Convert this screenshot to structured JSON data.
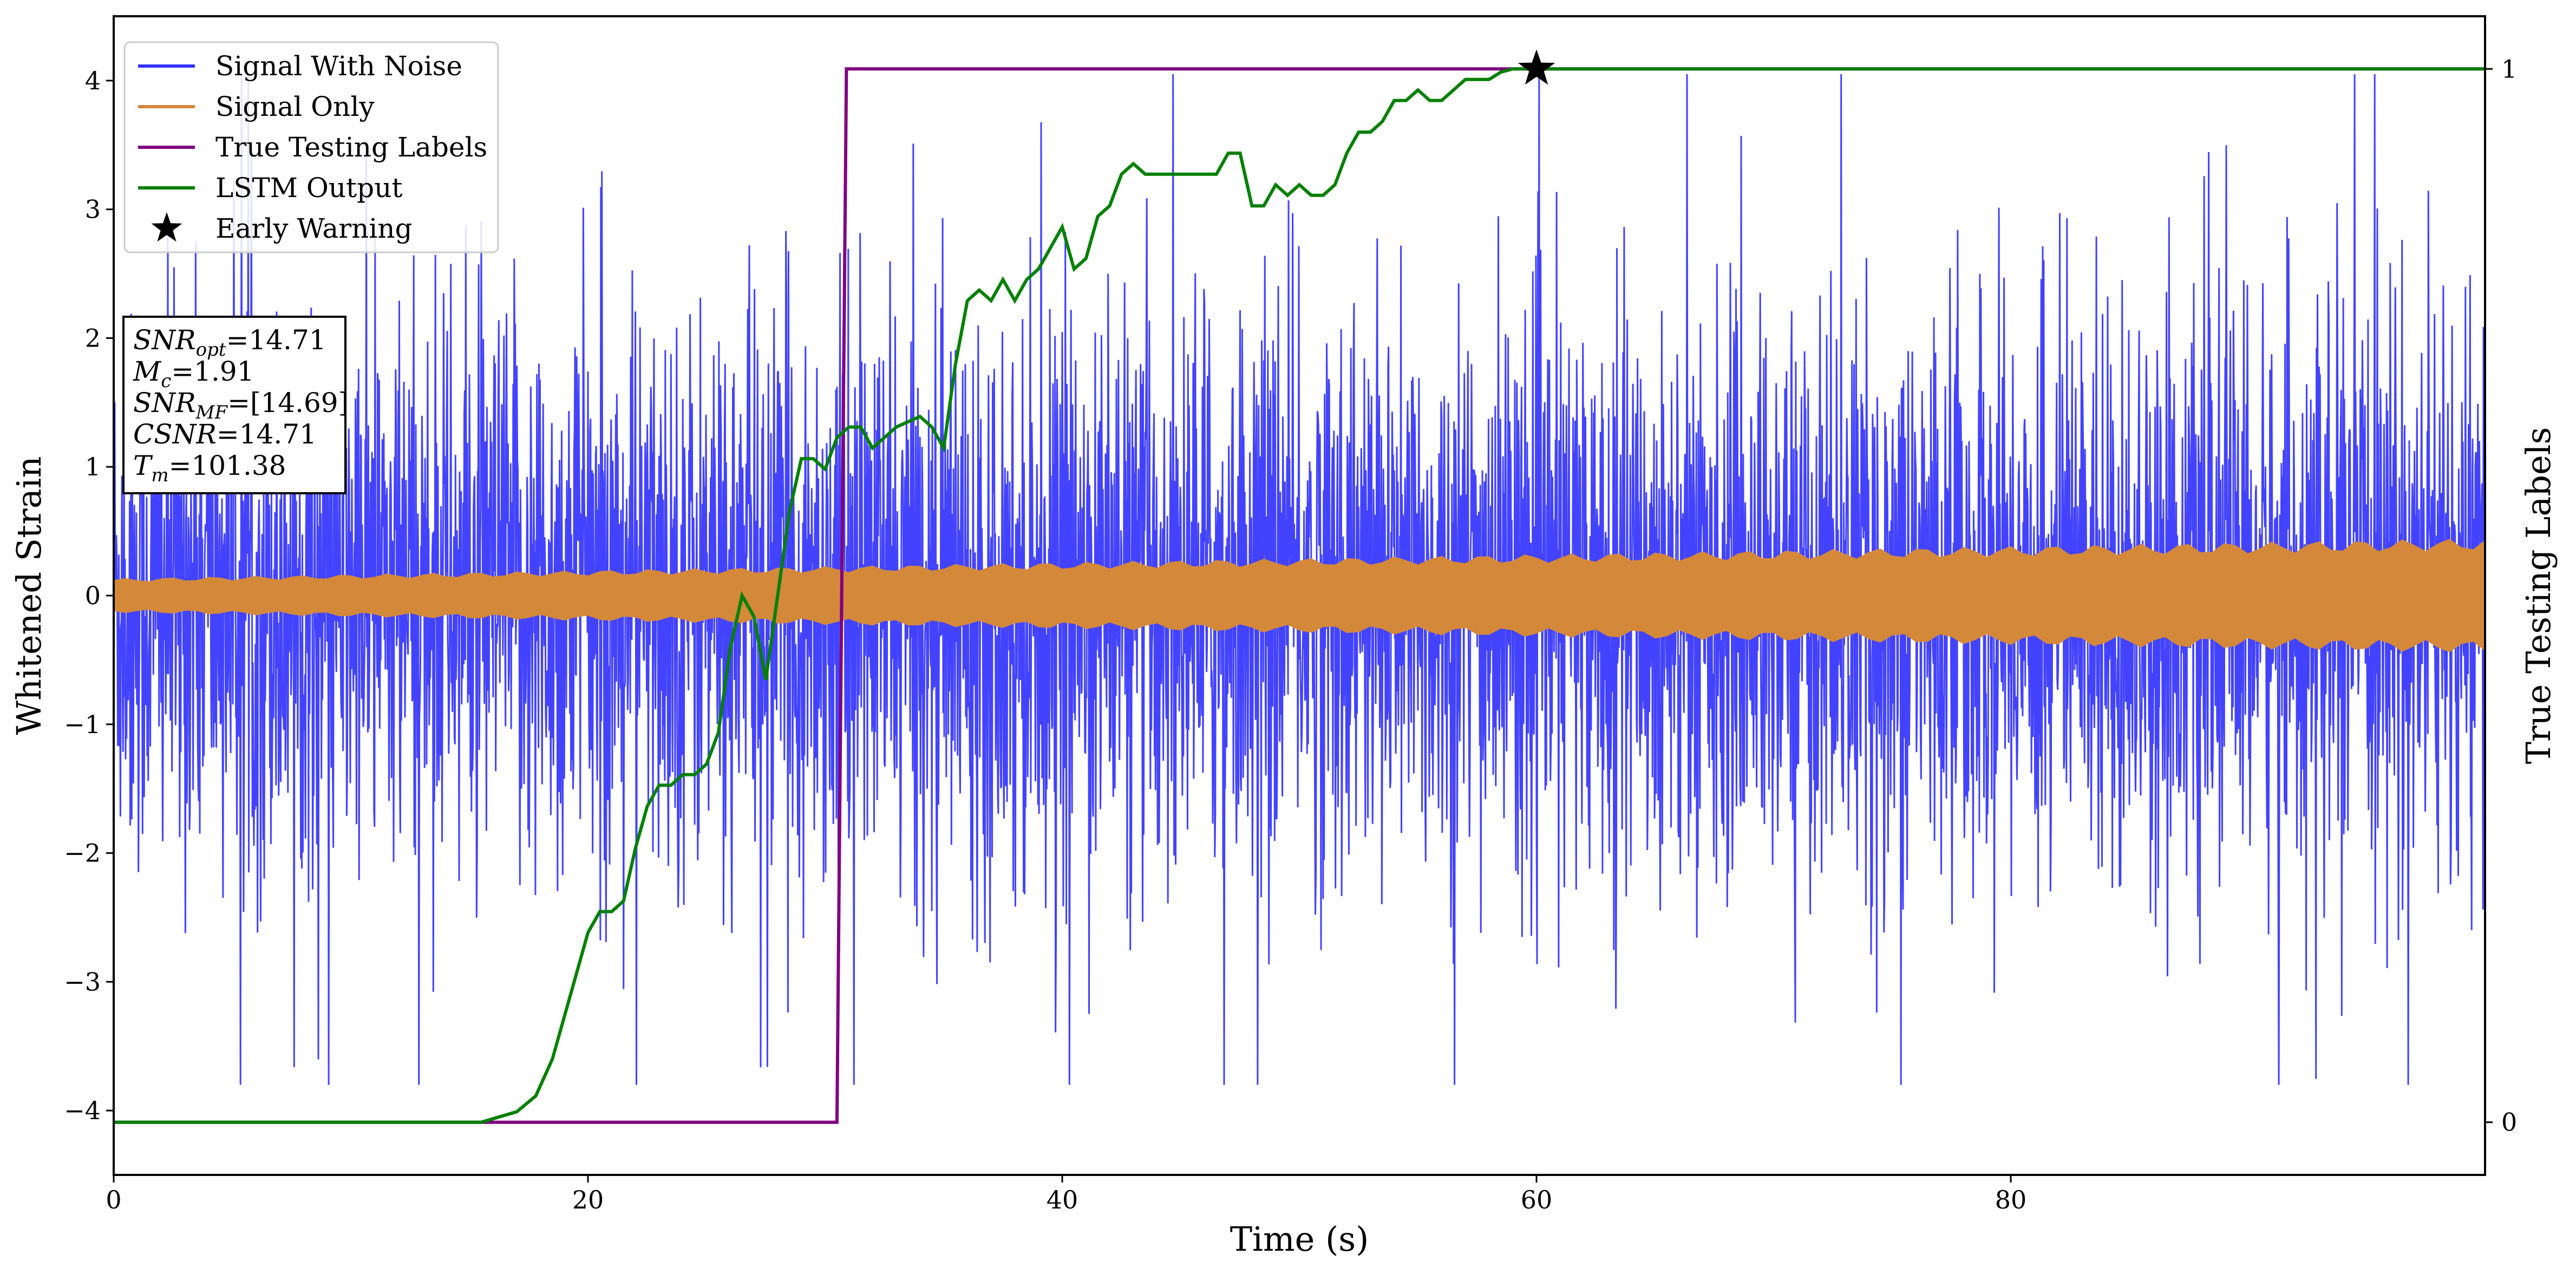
{
  "chart_data": {
    "type": "line",
    "xlabel": "Time (s)",
    "ylabel": "Whitened Strain",
    "y2label": "True Testing Labels",
    "xlim": [
      0,
      100
    ],
    "ylim": [
      -4.5,
      4.5
    ],
    "y2lim": [
      -0.05,
      1.05
    ],
    "xticks": [
      0,
      20,
      40,
      60,
      80
    ],
    "yticks": [
      -4,
      -3,
      -2,
      -1,
      0,
      1,
      2,
      3,
      4
    ],
    "y2ticks": [
      0,
      1
    ],
    "legend_position": "top-left",
    "grid": false,
    "series": [
      {
        "name": "Signal With Noise",
        "color": "#3333ff",
        "kind": "noise",
        "description_values": {
          "typical_amplitude": 1.2,
          "peak_min": -3.8,
          "peak_max": 4.05
        }
      },
      {
        "name": "Signal Only",
        "color": "#d4883a",
        "kind": "chirp-envelope",
        "envelope": {
          "x": [
            0,
            100
          ],
          "amplitude": [
            0.12,
            0.4
          ]
        }
      },
      {
        "name": "True Testing Labels",
        "color": "#800080",
        "axis": "right",
        "x": [
          0,
          30.5,
          30.9,
          100
        ],
        "y": [
          0,
          0,
          1,
          1
        ]
      },
      {
        "name": "LSTM Output",
        "color": "#008000",
        "axis": "right",
        "x": [
          0,
          15.5,
          17,
          17.8,
          18.5,
          19,
          19.5,
          20,
          20.5,
          21,
          21.5,
          22,
          22.5,
          23,
          23.5,
          24,
          24.5,
          25,
          25.5,
          26,
          26.5,
          27,
          27.5,
          28,
          28.5,
          29,
          29.5,
          30,
          30.5,
          31,
          31.5,
          32,
          33,
          34,
          34.5,
          35,
          35.5,
          36,
          36.5,
          37,
          37.5,
          38,
          38.5,
          39,
          39.5,
          40,
          40.5,
          41,
          41.5,
          42,
          42.5,
          43,
          43.5,
          44,
          44.5,
          45,
          45.5,
          46,
          46.5,
          47,
          47.5,
          48,
          48.5,
          49,
          49.5,
          50,
          50.5,
          51,
          51.5,
          52,
          52.5,
          53,
          53.5,
          54,
          54.5,
          55,
          55.5,
          56,
          56.5,
          57,
          57.5,
          58,
          58.5,
          59,
          59.5,
          60,
          61,
          62,
          70,
          80,
          90,
          100
        ],
        "y": [
          0,
          0,
          0.01,
          0.025,
          0.06,
          0.1,
          0.14,
          0.18,
          0.2,
          0.2,
          0.21,
          0.26,
          0.3,
          0.32,
          0.32,
          0.33,
          0.33,
          0.34,
          0.37,
          0.45,
          0.5,
          0.48,
          0.42,
          0.5,
          0.58,
          0.63,
          0.63,
          0.62,
          0.65,
          0.66,
          0.66,
          0.64,
          0.66,
          0.67,
          0.66,
          0.64,
          0.72,
          0.78,
          0.79,
          0.78,
          0.8,
          0.78,
          0.8,
          0.81,
          0.83,
          0.85,
          0.81,
          0.82,
          0.86,
          0.87,
          0.9,
          0.91,
          0.9,
          0.9,
          0.9,
          0.9,
          0.9,
          0.9,
          0.9,
          0.92,
          0.92,
          0.87,
          0.87,
          0.89,
          0.88,
          0.89,
          0.88,
          0.88,
          0.89,
          0.92,
          0.94,
          0.94,
          0.95,
          0.97,
          0.97,
          0.98,
          0.97,
          0.97,
          0.98,
          0.99,
          0.99,
          0.99,
          0.997,
          1,
          1,
          1,
          1,
          1,
          1,
          1,
          1,
          1
        ]
      },
      {
        "name": "Early Warning",
        "color": "#000000",
        "kind": "marker",
        "axis": "right",
        "x": [
          60
        ],
        "y": [
          1
        ]
      }
    ],
    "annotation": {
      "lines": [
        {
          "sym": "SNR",
          "sub": "opt",
          "value": "=14.71"
        },
        {
          "sym": "M",
          "sub": "c",
          "value": "=1.91"
        },
        {
          "sym": "SNR",
          "sub": "MF",
          "value": "=[14.69]"
        },
        {
          "sym": "CSNR",
          "sub": "",
          "value": "=14.71"
        },
        {
          "sym": "T",
          "sub": "m",
          "value": "=101.38"
        }
      ]
    }
  }
}
